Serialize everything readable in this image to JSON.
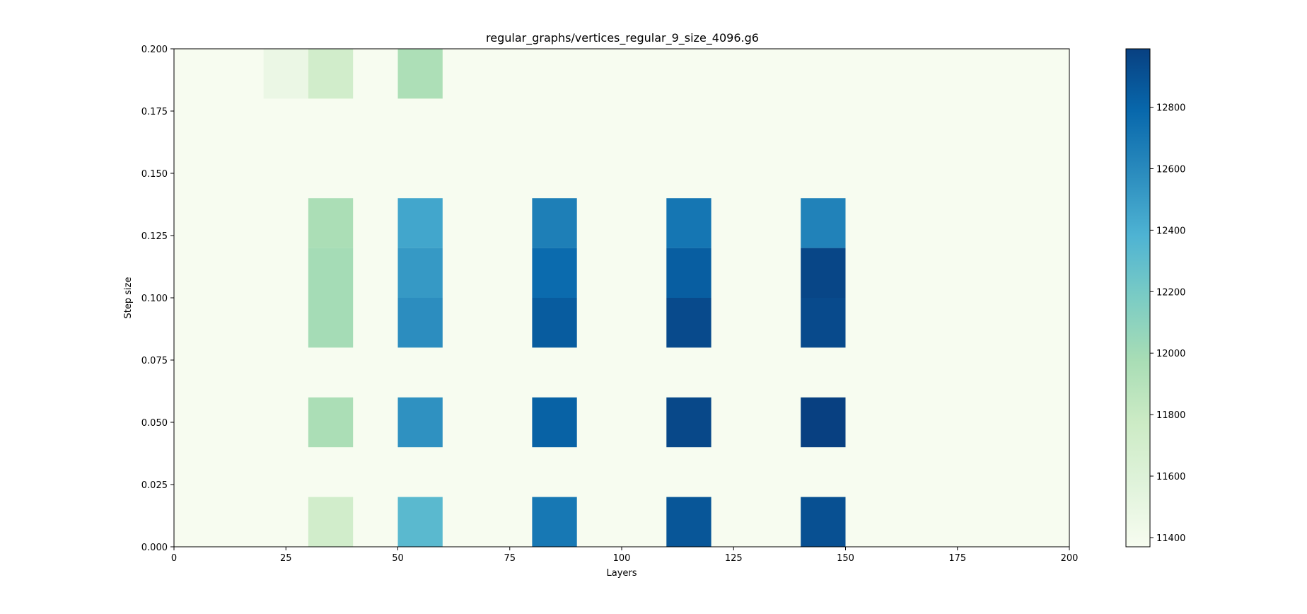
{
  "chart_data": {
    "type": "heatmap",
    "title": "regular_graphs/vertices_regular_9_size_4096.g6",
    "xlabel": "Layers",
    "ylabel": "Step size",
    "xlim": [
      0,
      200
    ],
    "ylim": [
      0,
      0.2
    ],
    "x_ticks": [
      "0",
      "25",
      "50",
      "75",
      "100",
      "125",
      "150",
      "175",
      "200"
    ],
    "y_ticks": [
      "0.000",
      "0.025",
      "0.050",
      "0.075",
      "0.100",
      "0.125",
      "0.150",
      "0.175",
      "0.200"
    ],
    "colormap": "GnBu",
    "colorbar": {
      "min": 11370,
      "max": 12990,
      "ticks": [
        "11400",
        "11600",
        "11800",
        "12000",
        "12200",
        "12400",
        "12600",
        "12800"
      ]
    },
    "x_edges": [
      0,
      10,
      20,
      30,
      40,
      50,
      60,
      70,
      80,
      90,
      100,
      110,
      120,
      130,
      140,
      150,
      160,
      170,
      180,
      190,
      200
    ],
    "y_edges": [
      0,
      0.02,
      0.04,
      0.06,
      0.08,
      0.1,
      0.12,
      0.14,
      0.16,
      0.18,
      0.2
    ],
    "background_value": 11370,
    "cells": [
      {
        "x": 30,
        "y": 0.0,
        "value": 11720
      },
      {
        "x": 50,
        "y": 0.0,
        "value": 12330
      },
      {
        "x": 80,
        "y": 0.0,
        "value": 12700
      },
      {
        "x": 110,
        "y": 0.0,
        "value": 12880
      },
      {
        "x": 140,
        "y": 0.0,
        "value": 12910
      },
      {
        "x": 30,
        "y": 0.04,
        "value": 11960
      },
      {
        "x": 50,
        "y": 0.04,
        "value": 12560
      },
      {
        "x": 80,
        "y": 0.04,
        "value": 12820
      },
      {
        "x": 110,
        "y": 0.04,
        "value": 12950
      },
      {
        "x": 140,
        "y": 0.04,
        "value": 12990
      },
      {
        "x": 30,
        "y": 0.08,
        "value": 11990
      },
      {
        "x": 50,
        "y": 0.08,
        "value": 12580
      },
      {
        "x": 80,
        "y": 0.08,
        "value": 12850
      },
      {
        "x": 110,
        "y": 0.08,
        "value": 12940
      },
      {
        "x": 140,
        "y": 0.08,
        "value": 12940
      },
      {
        "x": 30,
        "y": 0.1,
        "value": 11990
      },
      {
        "x": 50,
        "y": 0.1,
        "value": 12520
      },
      {
        "x": 80,
        "y": 0.1,
        "value": 12770
      },
      {
        "x": 110,
        "y": 0.1,
        "value": 12840
      },
      {
        "x": 140,
        "y": 0.1,
        "value": 12960
      },
      {
        "x": 30,
        "y": 0.12,
        "value": 11960
      },
      {
        "x": 50,
        "y": 0.12,
        "value": 12450
      },
      {
        "x": 80,
        "y": 0.12,
        "value": 12660
      },
      {
        "x": 110,
        "y": 0.12,
        "value": 12710
      },
      {
        "x": 140,
        "y": 0.12,
        "value": 12640
      },
      {
        "x": 20,
        "y": 0.18,
        "value": 11480
      },
      {
        "x": 30,
        "y": 0.18,
        "value": 11720
      },
      {
        "x": 50,
        "y": 0.18,
        "value": 11950
      }
    ]
  }
}
